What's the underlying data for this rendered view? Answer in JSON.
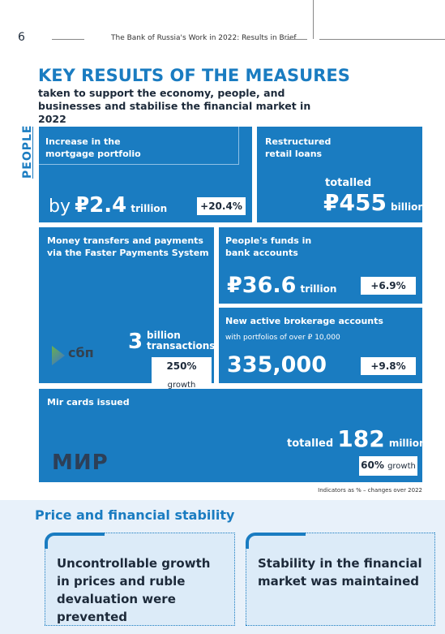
{
  "header": {
    "page_number": "6",
    "running_title": "The Bank of Russia's Work in 2022: Results in Brief"
  },
  "title": "KEY RESULTS OF THE MEASURES",
  "subtitle": "taken to support the economy, people, and businesses and stabilise the financial market in 2022",
  "side_label": "PEOPLE",
  "cards": [
    {
      "label": "Increase in the mortgage portfolio",
      "prefix": "by",
      "value": "₽2.4",
      "unit": "trillion",
      "change": "+20.4%"
    },
    {
      "label": "Restructured retail loans",
      "prefix": "totalled",
      "value": "₽455",
      "unit": "billion"
    },
    {
      "label": "Money transfers and payments via the Faster Payments System",
      "value": "3",
      "unit": "billion transactions",
      "growth": "250%",
      "growth_unit": "growth",
      "logo": "сбп"
    },
    {
      "label": "People's funds in bank accounts",
      "value": "₽36.6",
      "unit": "trillion",
      "change": "+6.9%"
    },
    {
      "label": "New active brokerage accounts",
      "sublabel": "with portfolios of over ₽ 10,000",
      "value": "335,000",
      "change": "+9.8%"
    },
    {
      "label": "Mir cards issued",
      "prefix": "totalled",
      "value": "182",
      "unit": "million",
      "growth": "60%",
      "growth_unit": "growth",
      "logo": "МИР"
    }
  ],
  "note": "Indicators as % – changes over 2022",
  "section": {
    "title": "Price and financial stability",
    "boxes": [
      "Uncontrollable growth in prices and ruble devaluation were prevented",
      "Stability in the financial market was maintained"
    ]
  }
}
